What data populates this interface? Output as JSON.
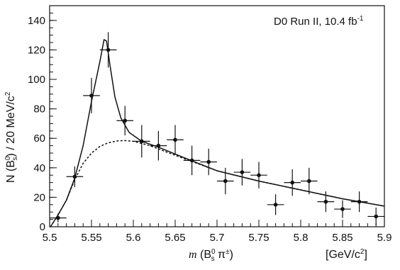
{
  "chart_data": {
    "type": "scatter",
    "title": "",
    "annotation": {
      "text": "D0 Run II, 10.4 fb",
      "sup": "-1"
    },
    "xlabel": {
      "prefix": "m",
      "paren_open": " (B",
      "sup": "0",
      "sub": "s",
      "rest": " π",
      "rest_sup": "±",
      "paren_close": ")",
      "unit_pre": "[GeV/c",
      "unit_sup": "2",
      "unit_post": "]"
    },
    "ylabel": {
      "pre": "N (B",
      "sup": "0",
      "sub": "s",
      "post": ") / 20 MeV/c",
      "post_sup": "2"
    },
    "xlim": [
      5.5,
      5.9
    ],
    "ylim": [
      0,
      150
    ],
    "x_ticks": [
      5.5,
      5.55,
      5.6,
      5.65,
      5.7,
      5.75,
      5.8,
      5.85,
      5.9
    ],
    "x_tick_labels": [
      "5.5",
      "5.55",
      "5.6",
      "5.65",
      "5.7",
      "5.75",
      "5.8",
      "5.85",
      "5.9"
    ],
    "y_ticks": [
      0,
      20,
      40,
      60,
      80,
      100,
      120,
      140
    ],
    "y_tick_labels": [
      "0",
      "20",
      "40",
      "60",
      "80",
      "100",
      "120",
      "140"
    ],
    "x_minor_step": 0.01,
    "y_minor_step": 5,
    "x_bin_half_width": 0.01,
    "series": [
      {
        "style": "data-points-with-errors",
        "points": [
          {
            "x": 5.51,
            "y": 6,
            "err": 3
          },
          {
            "x": 5.53,
            "y": 34,
            "err": 7
          },
          {
            "x": 5.55,
            "y": 89,
            "err": 12
          },
          {
            "x": 5.57,
            "y": 120,
            "err": 12
          },
          {
            "x": 5.59,
            "y": 72,
            "err": 10
          },
          {
            "x": 5.61,
            "y": 58,
            "err": 11
          },
          {
            "x": 5.63,
            "y": 55,
            "err": 10
          },
          {
            "x": 5.65,
            "y": 59,
            "err": 10
          },
          {
            "x": 5.67,
            "y": 45,
            "err": 10
          },
          {
            "x": 5.69,
            "y": 44,
            "err": 9
          },
          {
            "x": 5.71,
            "y": 31,
            "err": 9
          },
          {
            "x": 5.73,
            "y": 37,
            "err": 9
          },
          {
            "x": 5.75,
            "y": 35,
            "err": 9
          },
          {
            "x": 5.77,
            "y": 15,
            "err": 7
          },
          {
            "x": 5.79,
            "y": 30,
            "err": 9
          },
          {
            "x": 5.81,
            "y": 31,
            "err": 9
          },
          {
            "x": 5.83,
            "y": 17,
            "err": 7
          },
          {
            "x": 5.85,
            "y": 12,
            "err": 6
          },
          {
            "x": 5.87,
            "y": 17,
            "err": 7
          },
          {
            "x": 5.89,
            "y": 7,
            "err": 6
          }
        ]
      },
      {
        "style": "solid-curve",
        "points": [
          [
            5.501,
            0
          ],
          [
            5.51,
            8
          ],
          [
            5.52,
            18
          ],
          [
            5.53,
            33
          ],
          [
            5.54,
            55
          ],
          [
            5.55,
            85
          ],
          [
            5.56,
            112
          ],
          [
            5.565,
            127
          ],
          [
            5.568,
            126
          ],
          [
            5.572,
            110
          ],
          [
            5.578,
            88
          ],
          [
            5.585,
            74
          ],
          [
            5.595,
            64
          ],
          [
            5.61,
            58
          ],
          [
            5.63,
            54
          ],
          [
            5.66,
            47
          ],
          [
            5.7,
            38
          ],
          [
            5.75,
            31
          ],
          [
            5.8,
            25
          ],
          [
            5.85,
            19
          ],
          [
            5.9,
            14
          ]
        ]
      },
      {
        "style": "dashed-curve",
        "points": [
          [
            5.501,
            0
          ],
          [
            5.51,
            8
          ],
          [
            5.52,
            18
          ],
          [
            5.53,
            32
          ],
          [
            5.54,
            43
          ],
          [
            5.55,
            50
          ],
          [
            5.56,
            54.5
          ],
          [
            5.57,
            57
          ],
          [
            5.58,
            58.2
          ],
          [
            5.59,
            58.5
          ],
          [
            5.6,
            58
          ],
          [
            5.62,
            55
          ],
          [
            5.65,
            48.5
          ],
          [
            5.7,
            38
          ],
          [
            5.75,
            31
          ],
          [
            5.8,
            25
          ],
          [
            5.85,
            19
          ],
          [
            5.9,
            14
          ]
        ]
      }
    ]
  }
}
